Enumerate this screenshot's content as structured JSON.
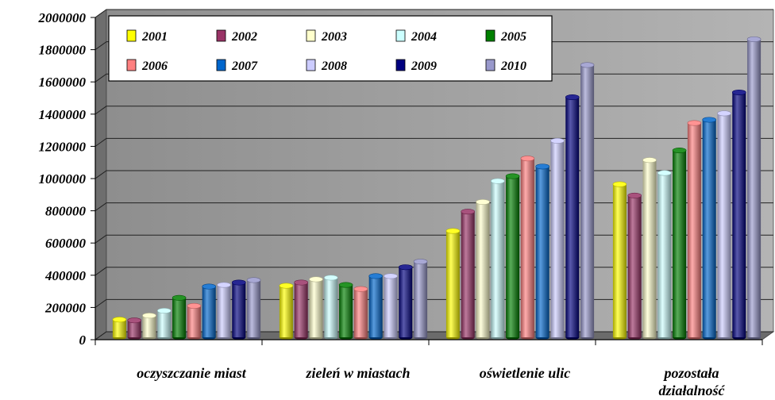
{
  "chart_data": {
    "type": "bar",
    "title": "",
    "xlabel": "",
    "ylabel": "",
    "ylim": [
      0,
      2000000
    ],
    "yticks": [
      "0",
      "200000",
      "400000",
      "600000",
      "800000",
      "1000000",
      "1200000",
      "1400000",
      "1600000",
      "1800000",
      "2000000"
    ],
    "grid": true,
    "legend_position": "top-inside",
    "categories": [
      "oczyszczanie miast",
      "zieleń w miastach",
      "oświetlenie ulic",
      "pozostała działalność"
    ],
    "series": [
      {
        "name": "2001",
        "color": "#ffff00",
        "values": [
          110000,
          320000,
          660000,
          950000
        ]
      },
      {
        "name": "2002",
        "color": "#993366",
        "values": [
          105000,
          340000,
          780000,
          880000
        ]
      },
      {
        "name": "2003",
        "color": "#ffffcc",
        "values": [
          135000,
          360000,
          840000,
          1100000
        ]
      },
      {
        "name": "2004",
        "color": "#ccffff",
        "values": [
          165000,
          370000,
          970000,
          1020000
        ]
      },
      {
        "name": "2005",
        "color": "#008000",
        "values": [
          245000,
          325000,
          1000000,
          1160000
        ]
      },
      {
        "name": "2006",
        "color": "#ff8080",
        "values": [
          195000,
          300000,
          1110000,
          1330000
        ]
      },
      {
        "name": "2007",
        "color": "#0066cc",
        "values": [
          315000,
          380000,
          1060000,
          1350000
        ]
      },
      {
        "name": "2008",
        "color": "#ccccff",
        "values": [
          325000,
          380000,
          1220000,
          1390000
        ]
      },
      {
        "name": "2009",
        "color": "#000080",
        "values": [
          340000,
          435000,
          1490000,
          1520000
        ]
      },
      {
        "name": "2010",
        "color": "#9999cc",
        "values": [
          355000,
          470000,
          1690000,
          1850000
        ]
      }
    ]
  },
  "category_display": [
    [
      "oczyszczanie miast"
    ],
    [
      "zieleń w miastach"
    ],
    [
      "oświetlenie ulic"
    ],
    [
      "pozostała",
      "działalność"
    ]
  ]
}
